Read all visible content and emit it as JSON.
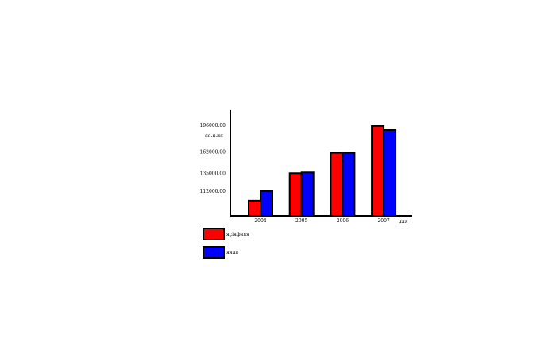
{
  "chart_data": {
    "type": "bar",
    "title": "",
    "ylabel": "яя.я.ия",
    "xlabel": "яяя",
    "categories": [
      "2004",
      "2005",
      "2006",
      "2007"
    ],
    "yticks": [
      "112000.00",
      "135000.00",
      "162000.00",
      "196000.00"
    ],
    "series": [
      {
        "name": "яçіяфяяя",
        "color": "#ff0000",
        "values": [
          100000,
          135000,
          161000,
          195000
        ]
      },
      {
        "name": "яяяя",
        "color": "#0000ff",
        "values": [
          112000,
          136000,
          161000,
          190000
        ]
      }
    ],
    "legend_position": "bottom-left",
    "grid": false
  }
}
